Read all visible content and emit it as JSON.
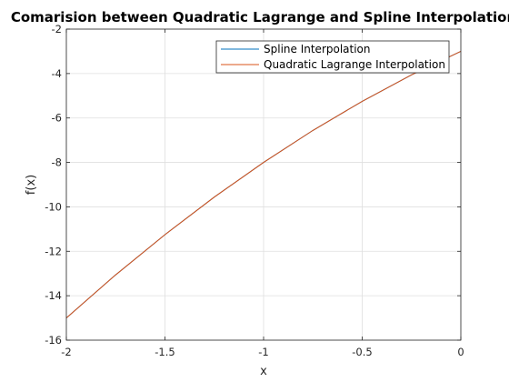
{
  "chart_data": {
    "type": "line",
    "title": "Comarision between Quadratic Lagrange and Spline Interpolation",
    "xlabel": "x",
    "ylabel": "f(x)",
    "xlim": [
      -2,
      0
    ],
    "ylim": [
      -16,
      -2
    ],
    "xticks": [
      -2,
      -1.5,
      -1,
      -0.5,
      0
    ],
    "xtick_labels": [
      "-2",
      "-1.5",
      "-1",
      "-0.5",
      "0"
    ],
    "yticks": [
      -16,
      -14,
      -12,
      -10,
      -8,
      -6,
      -4,
      -2
    ],
    "ytick_labels": [
      "-16",
      "-14",
      "-12",
      "-10",
      "-8",
      "-6",
      "-4",
      "-2"
    ],
    "grid": true,
    "legend_location": "top-right",
    "x": [
      -2,
      -1.75,
      -1.5,
      -1.25,
      -1,
      -0.75,
      -0.5,
      -0.25,
      0
    ],
    "series": [
      {
        "name": "Spline Interpolation",
        "color": "#0072BD",
        "values": [
          -15,
          -13.06,
          -11.25,
          -9.56,
          -8,
          -6.56,
          -5.25,
          -4.06,
          -3
        ]
      },
      {
        "name": "Quadratic Lagrange Interpolation",
        "color": "#D95319",
        "values": [
          -15,
          -13.06,
          -11.25,
          -9.56,
          -8,
          -6.56,
          -5.25,
          -4.06,
          -3
        ]
      }
    ]
  }
}
